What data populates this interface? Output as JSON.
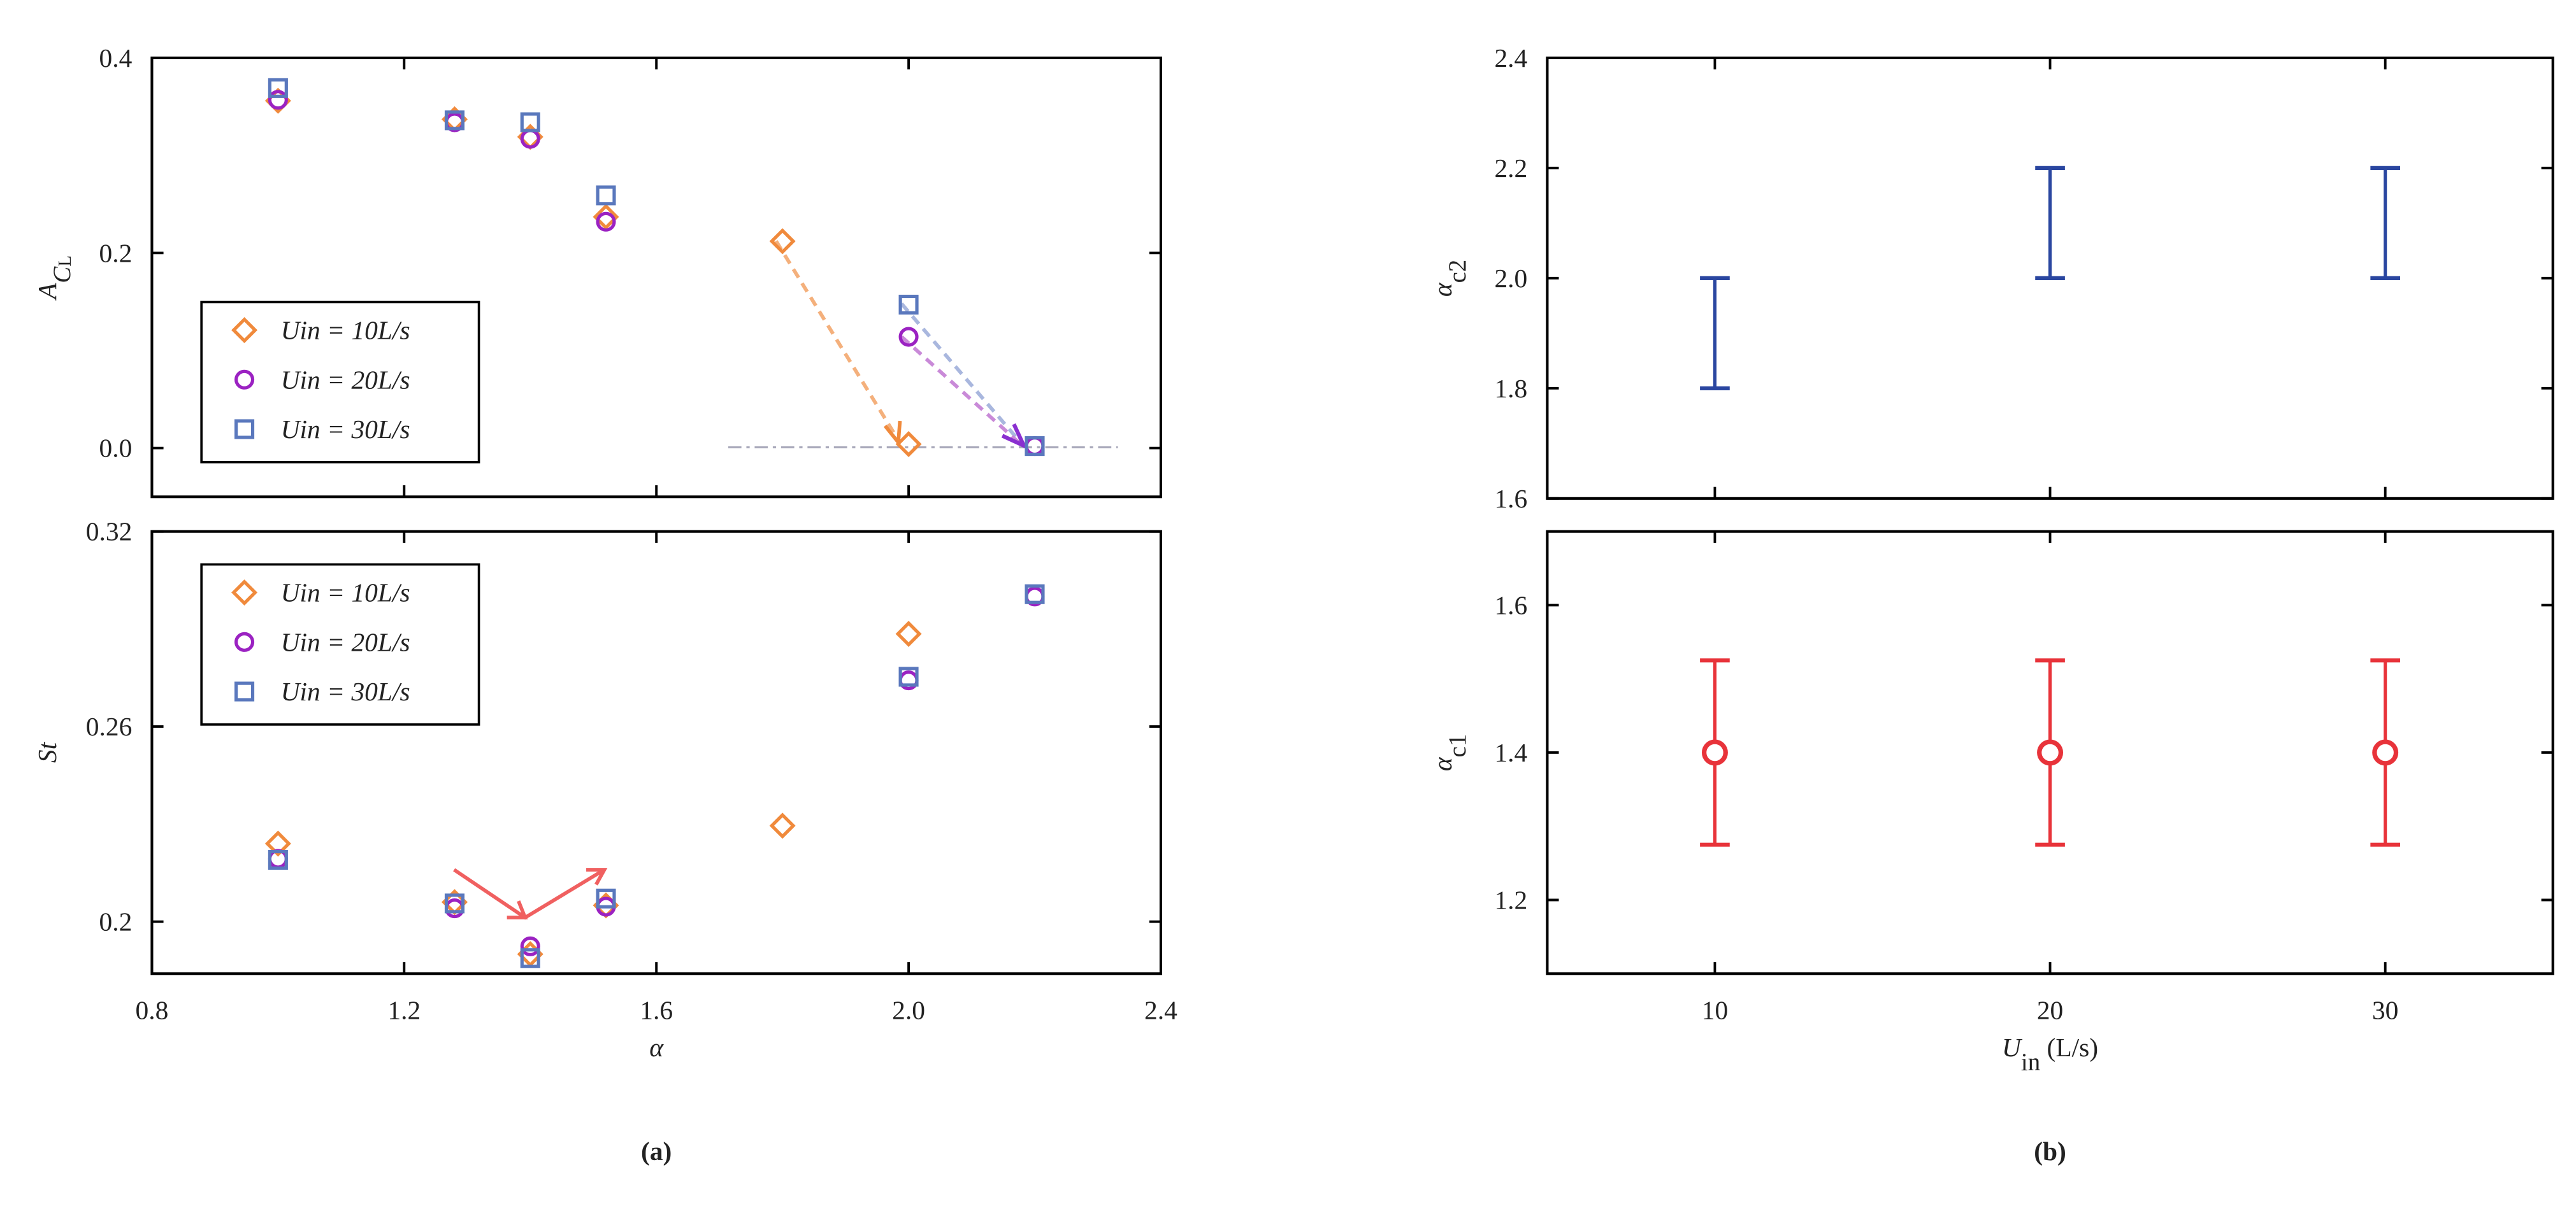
{
  "chart_data": [
    {
      "type": "scatter",
      "y_label": {
        "base": "A",
        "sub": "C",
        "subsub": "L"
      },
      "xlim": [
        0.8,
        2.4
      ],
      "ylim": [
        -0.05,
        0.4
      ],
      "xticks": [
        0.8,
        1.2,
        1.6,
        {
          "value": 2,
          "label": "2.0"
        },
        2.4
      ],
      "xtick_labels": false,
      "yticks": [
        {
          "value": 0,
          "label": "0.0"
        },
        0.2,
        0.4
      ],
      "legend": "center left",
      "series": [
        {
          "name": "Uin = 10L/s",
          "color": "#f08a3c",
          "marker": "diamond",
          "x": [
            1.0,
            1.28,
            1.4,
            1.52,
            1.8,
            2.0
          ],
          "values": [
            0.356,
            0.337,
            0.319,
            0.237,
            0.212,
            0.004
          ]
        },
        {
          "name": "Uin = 20L/s",
          "color": "#9b22c2",
          "marker": "circle",
          "x": [
            1.0,
            1.28,
            1.4,
            1.52,
            2.0,
            2.2
          ],
          "values": [
            0.357,
            0.334,
            0.317,
            0.232,
            0.114,
            0.002
          ]
        },
        {
          "name": "Uin = 30L/s",
          "color": "#5a78bd",
          "marker": "square",
          "x": [
            1.0,
            1.28,
            1.4,
            1.52,
            2.0,
            2.2
          ],
          "values": [
            0.369,
            0.336,
            0.334,
            0.259,
            0.147,
            0.002
          ]
        }
      ]
    },
    {
      "type": "scatter",
      "x_label": {
        "base": "α"
      },
      "y_label": {
        "base": "St"
      },
      "caption": "(a)",
      "xlim": [
        0.8,
        2.4
      ],
      "ylim": [
        0.184,
        0.32
      ],
      "xticks": [
        0.8,
        1.2,
        1.6,
        {
          "value": 2,
          "label": "2.0"
        },
        2.4
      ],
      "yticks": [
        0.2,
        0.26,
        0.32
      ],
      "legend": "upper left",
      "series": [
        {
          "name": "Uin = 10L/s",
          "color": "#f08a3c",
          "marker": "diamond",
          "x": [
            1.0,
            1.28,
            1.4,
            1.52,
            1.8,
            2.0
          ],
          "values": [
            0.224,
            0.206,
            0.19,
            0.205,
            0.2295,
            0.2885
          ]
        },
        {
          "name": "Uin = 20L/s",
          "color": "#9b22c2",
          "marker": "circle",
          "x": [
            1.0,
            1.28,
            1.4,
            1.52,
            2.0,
            2.2
          ],
          "values": [
            0.2193,
            0.2041,
            0.1924,
            0.2046,
            0.2742,
            0.3
          ]
        },
        {
          "name": "Uin = 30L/s",
          "color": "#5a78bd",
          "marker": "square",
          "x": [
            1.0,
            1.28,
            1.4,
            1.52,
            2.0,
            2.2
          ],
          "values": [
            0.219,
            0.2056,
            0.1888,
            0.2071,
            0.2753,
            0.3007
          ]
        }
      ]
    },
    {
      "type": "range",
      "y_label": {
        "base": "α",
        "sub": "c2"
      },
      "color": "#2a46a0",
      "xlim": [
        5,
        35
      ],
      "ylim": [
        1.6,
        2.4
      ],
      "xticks": [
        10,
        20,
        30
      ],
      "xtick_labels": false,
      "yticks": [
        1.6,
        1.8,
        {
          "value": 2,
          "label": "2.0"
        },
        2.2,
        2.4
      ],
      "x": [
        10,
        20,
        30
      ],
      "low": [
        1.8,
        2.0,
        2.0
      ],
      "high": [
        2.0,
        2.2,
        2.2
      ]
    },
    {
      "type": "errorbar",
      "x_label": {
        "base": "U",
        "sub": "in",
        "rest": " (L/s)"
      },
      "y_label": {
        "base": "α",
        "sub": "c1"
      },
      "caption": "(b)",
      "color": "#e8333a",
      "xlim": [
        5,
        35
      ],
      "ylim": [
        1.1,
        1.7
      ],
      "xticks": [
        10,
        20,
        30
      ],
      "yticks": [
        1.2,
        1.4,
        1.6
      ],
      "x": [
        10,
        20,
        30
      ],
      "values": [
        1.4,
        1.4,
        1.4
      ],
      "errors": [
        0.125,
        0.125,
        0.125
      ]
    }
  ]
}
